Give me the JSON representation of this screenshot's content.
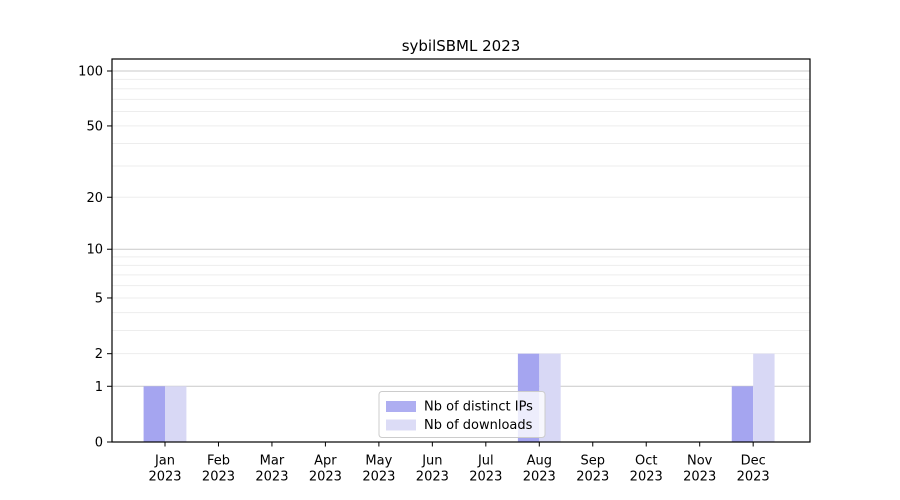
{
  "figure": {
    "background": "#ffffff"
  },
  "chart_data": {
    "type": "bar",
    "title": "sybilSBML 2023",
    "xlabel": "",
    "ylabel": "",
    "scale": "log1p",
    "ylim": [
      0,
      117
    ],
    "grid": "horizontal major+minor, light gray",
    "legend_position": "bottom-center-inside",
    "yticks": [
      0,
      1,
      2,
      5,
      10,
      20,
      50,
      100
    ],
    "categories": [
      {
        "month": "Jan",
        "year": "2023"
      },
      {
        "month": "Feb",
        "year": "2023"
      },
      {
        "month": "Mar",
        "year": "2023"
      },
      {
        "month": "Apr",
        "year": "2023"
      },
      {
        "month": "May",
        "year": "2023"
      },
      {
        "month": "Jun",
        "year": "2023"
      },
      {
        "month": "Jul",
        "year": "2023"
      },
      {
        "month": "Aug",
        "year": "2023"
      },
      {
        "month": "Sep",
        "year": "2023"
      },
      {
        "month": "Oct",
        "year": "2023"
      },
      {
        "month": "Nov",
        "year": "2023"
      },
      {
        "month": "Dec",
        "year": "2023"
      }
    ],
    "series": [
      {
        "name": "Nb of distinct IPs",
        "color": "#a5a5f0",
        "values": [
          1,
          0,
          0,
          0,
          0,
          0,
          0,
          2,
          0,
          0,
          0,
          1
        ]
      },
      {
        "name": "Nb of downloads",
        "color": "#d8d8f5",
        "values": [
          1,
          0,
          0,
          0,
          0,
          0,
          0,
          2,
          0,
          0,
          0,
          2
        ]
      }
    ],
    "colors": {
      "axis": "#000000",
      "major_grid": "#c9c9c9",
      "minor_grid": "#ededed",
      "legend_border": "#cccccc",
      "legend_bg": "#ffffff"
    }
  }
}
